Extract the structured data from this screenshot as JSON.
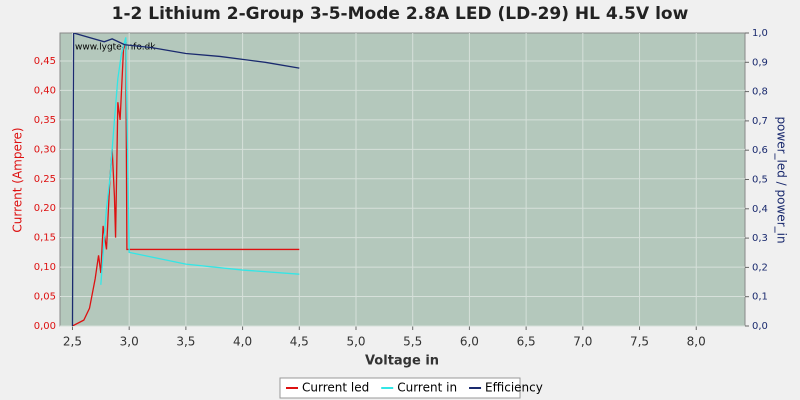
{
  "chart_data": {
    "type": "line",
    "title": "1-2 Lithium 2-Group 3-5-Mode 2.8A LED (LD-29) HL 4.5V low",
    "watermark": "www.lygte-info.dk",
    "xlabel": "Voltage in",
    "ylabel": "Current (Ampere)",
    "y2label": "power_led / power_in",
    "xlim": [
      2.39,
      8.43
    ],
    "ylim": [
      0,
      0.4975
    ],
    "y2lim": [
      0,
      1.0
    ],
    "xticks": [
      {
        "value": 2.5,
        "label": "2,5"
      },
      {
        "value": 3.0,
        "label": "3,0"
      },
      {
        "value": 3.5,
        "label": "3,5"
      },
      {
        "value": 4.0,
        "label": "4,0"
      },
      {
        "value": 4.5,
        "label": "4,5"
      },
      {
        "value": 5.0,
        "label": "5,0"
      },
      {
        "value": 5.5,
        "label": "5,5"
      },
      {
        "value": 6.0,
        "label": "6,0"
      },
      {
        "value": 6.5,
        "label": "6,5"
      },
      {
        "value": 7.0,
        "label": "7,0"
      },
      {
        "value": 7.5,
        "label": "7,5"
      },
      {
        "value": 8.0,
        "label": "8,0"
      }
    ],
    "yticks": [
      {
        "value": 0,
        "label": "0,00"
      },
      {
        "value": 0.05,
        "label": "0,05"
      },
      {
        "value": 0.1,
        "label": "0,10"
      },
      {
        "value": 0.15,
        "label": "0,15"
      },
      {
        "value": 0.2,
        "label": "0,20"
      },
      {
        "value": 0.25,
        "label": "0,25"
      },
      {
        "value": 0.3,
        "label": "0,30"
      },
      {
        "value": 0.35,
        "label": "0,35"
      },
      {
        "value": 0.4,
        "label": "0,40"
      },
      {
        "value": 0.45,
        "label": "0,45"
      }
    ],
    "y2ticks": [
      {
        "value": 0,
        "label": "0,0"
      },
      {
        "value": 0.1,
        "label": "0,1"
      },
      {
        "value": 0.2,
        "label": "0,2"
      },
      {
        "value": 0.3,
        "label": "0,3"
      },
      {
        "value": 0.4,
        "label": "0,4"
      },
      {
        "value": 0.5,
        "label": "0,5"
      },
      {
        "value": 0.6,
        "label": "0,6"
      },
      {
        "value": 0.7,
        "label": "0,7"
      },
      {
        "value": 0.8,
        "label": "0,8"
      },
      {
        "value": 0.9,
        "label": "0,9"
      },
      {
        "value": 1,
        "label": "1,0"
      }
    ],
    "grid": true,
    "series": [
      {
        "name": "Current led",
        "color": "#dd1111",
        "x": [
          2.5,
          2.6,
          2.65,
          2.7,
          2.73,
          2.75,
          2.77,
          2.8,
          2.83,
          2.85,
          2.87,
          2.88,
          2.9,
          2.92,
          2.95,
          2.97,
          2.98,
          3.0,
          3.5,
          4.0,
          4.5
        ],
        "values": [
          0.0,
          0.01,
          0.03,
          0.08,
          0.12,
          0.09,
          0.17,
          0.13,
          0.25,
          0.3,
          0.22,
          0.15,
          0.38,
          0.35,
          0.47,
          0.48,
          0.13,
          0.13,
          0.13,
          0.13,
          0.13
        ]
      },
      {
        "name": "Current in",
        "color": "#33e6e6",
        "x": [
          2.75,
          2.78,
          2.8,
          2.83,
          2.87,
          2.9,
          2.93,
          2.97,
          3.0,
          3.5,
          4.0,
          4.5
        ],
        "values": [
          0.07,
          0.15,
          0.2,
          0.25,
          0.35,
          0.42,
          0.46,
          0.49,
          0.125,
          0.105,
          0.095,
          0.088
        ]
      },
      {
        "name": "Efficiency",
        "color": "#1a2a6e",
        "axis": "y2",
        "x": [
          2.5,
          2.51,
          2.78,
          2.85,
          2.96,
          3.2,
          3.5,
          3.8,
          4.0,
          4.2,
          4.5
        ],
        "values": [
          0.0,
          1.0,
          0.97,
          0.98,
          0.96,
          0.95,
          0.93,
          0.92,
          0.91,
          0.9,
          0.88
        ]
      }
    ]
  }
}
